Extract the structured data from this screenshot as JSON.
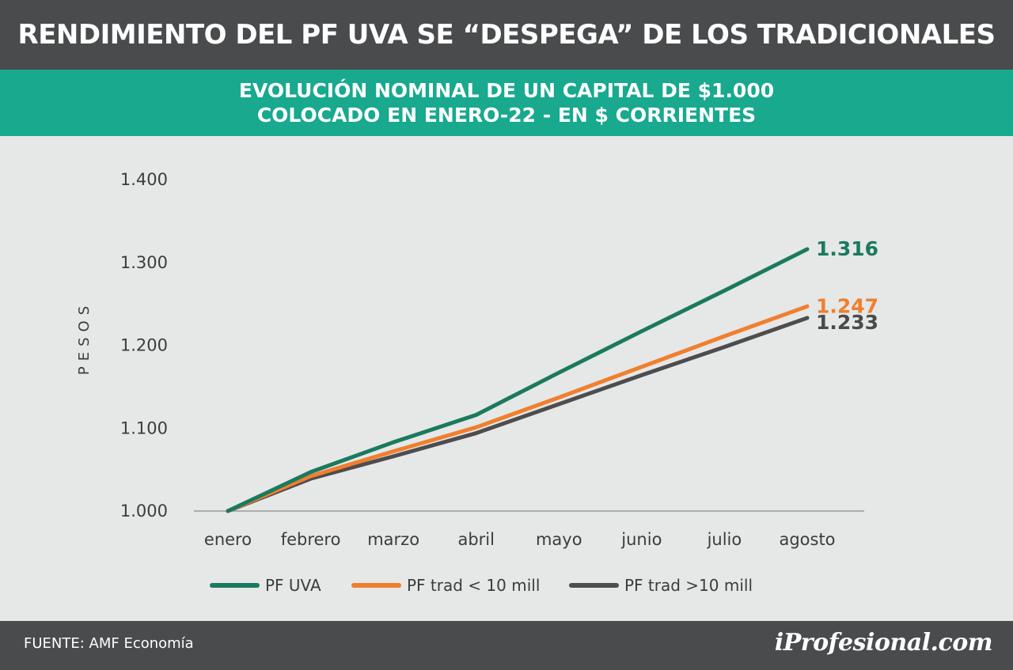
{
  "header": {
    "title": "RENDIMIENTO DEL PF UVA SE “DESPEGA” DE LOS TRADICIONALES",
    "subtitle_line1": "EVOLUCIÓN NOMINAL DE UN CAPITAL DE $1.000",
    "subtitle_line2": "COLOCADO EN ENERO-22 - EN $ CORRIENTES"
  },
  "footer": {
    "source": "FUENTE: AMF Economía",
    "brand": "iProfesional.com"
  },
  "chart_data": {
    "type": "line",
    "ylabel": "PESOS",
    "xlabel": "",
    "categories": [
      "enero",
      "febrero",
      "marzo",
      "abril",
      "mayo",
      "junio",
      "julio",
      "agosto"
    ],
    "ylim": [
      1000,
      1400
    ],
    "yticks": [
      1000,
      1100,
      1200,
      1300,
      1400
    ],
    "ytick_labels": [
      "1.000",
      "1.100",
      "1.200",
      "1.300",
      "1.400"
    ],
    "grid": false,
    "legend_position": "bottom",
    "series": [
      {
        "name": "PF UVA",
        "color": "#1a7a5e",
        "values": [
          1000,
          1047,
          1083,
          1116,
          1167,
          1217,
          1266,
          1316
        ],
        "end_label": "1.316"
      },
      {
        "name": "PF trad < 10 mill",
        "color": "#f07f2e",
        "values": [
          1000,
          1042,
          1072,
          1101,
          1137,
          1174,
          1211,
          1247
        ],
        "end_label": "1.247"
      },
      {
        "name": "PF trad >10 mill",
        "color": "#4d4d4f",
        "values": [
          1000,
          1039,
          1066,
          1094,
          1129,
          1164,
          1198,
          1233
        ],
        "end_label": "1.233"
      }
    ]
  }
}
